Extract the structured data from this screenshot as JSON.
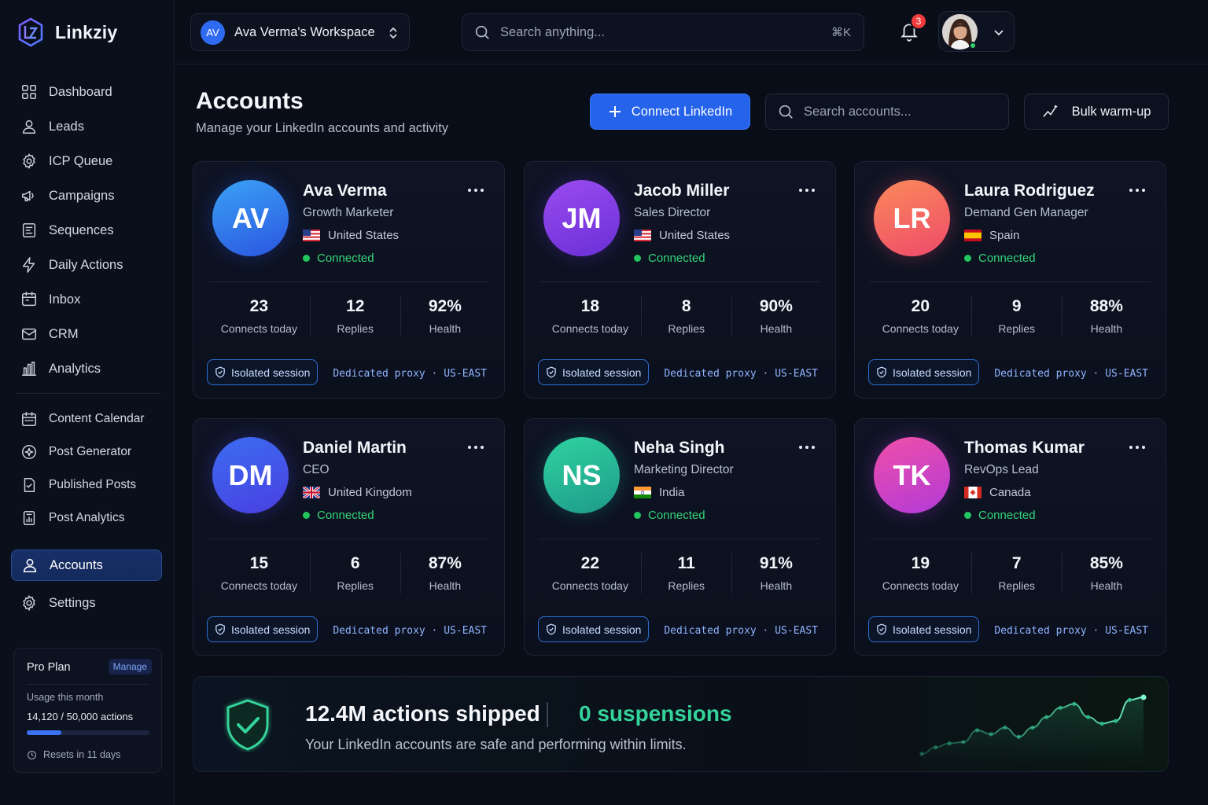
{
  "app": {
    "name": "Linkziy"
  },
  "sidebar": {
    "primary": [
      {
        "label": "Dashboard",
        "icon": "grid-icon"
      },
      {
        "label": "Leads",
        "icon": "user-icon"
      },
      {
        "label": "ICP Queue",
        "icon": "gear-badge-icon"
      },
      {
        "label": "Campaigns",
        "icon": "megaphone-icon"
      },
      {
        "label": "Sequences",
        "icon": "sequence-icon"
      },
      {
        "label": "Daily Actions",
        "icon": "bolt-icon"
      },
      {
        "label": "Inbox",
        "icon": "inbox-icon"
      },
      {
        "label": "CRM",
        "icon": "mail-icon"
      },
      {
        "label": "Analytics",
        "icon": "bar-chart-icon"
      }
    ],
    "content": [
      {
        "label": "Content Calendar",
        "icon": "calendar-icon"
      },
      {
        "label": "Post Generator",
        "icon": "sparkle-icon"
      },
      {
        "label": "Published Posts",
        "icon": "doc-check-icon"
      },
      {
        "label": "Post Analytics",
        "icon": "doc-chart-icon"
      }
    ],
    "accounts": {
      "label": "Accounts",
      "icon": "user-icon"
    },
    "settings": {
      "label": "Settings",
      "icon": "gear-icon"
    },
    "plan": {
      "title": "Pro Plan",
      "manage": "Manage",
      "usage_label": "Usage this month",
      "usage_value": "14,120 / 50,000 actions",
      "usage_fraction": 0.2824,
      "reset": "Resets in 11 days"
    }
  },
  "topbar": {
    "workspace_initials": "AV",
    "workspace": "Ava Verma's Workspace",
    "search_placeholder": "Search anything...",
    "shortcut": "⌘K",
    "notifications": "3"
  },
  "header": {
    "title": "Accounts",
    "subtitle": "Manage your LinkedIn accounts and activity",
    "connect_button": "Connect LinkedIn",
    "search_placeholder": "Search accounts...",
    "bulk_button": "Bulk warm-up"
  },
  "labels": {
    "connects": "Connects today",
    "replies": "Replies",
    "health": "Health",
    "session": "Isolated session",
    "proxy": "Dedicated proxy · US-EAST"
  },
  "accounts": [
    {
      "initials": "AV",
      "name": "Ava Verma",
      "role": "Growth Marketer",
      "country": "United States",
      "flag": "us",
      "status": "Connected",
      "connects": "23",
      "replies": "12",
      "health": "92%",
      "gradient": [
        "#3aa2f5",
        "#2b55e0"
      ]
    },
    {
      "initials": "JM",
      "name": "Jacob Miller",
      "role": "Sales Director",
      "country": "United States",
      "flag": "us",
      "status": "Connected",
      "connects": "18",
      "replies": "8",
      "health": "90%",
      "gradient": [
        "#9a4cf0",
        "#6a2fd6"
      ]
    },
    {
      "initials": "LR",
      "name": "Laura Rodriguez",
      "role": "Demand Gen Manager",
      "country": "Spain",
      "flag": "es",
      "status": "Connected",
      "connects": "20",
      "replies": "9",
      "health": "88%",
      "gradient": [
        "#fb8a5a",
        "#ee4a6a"
      ]
    },
    {
      "initials": "DM",
      "name": "Daniel Martin",
      "role": "CEO",
      "country": "United Kingdom",
      "flag": "uk",
      "status": "Connected",
      "connects": "15",
      "replies": "6",
      "health": "87%",
      "gradient": [
        "#3b6df2",
        "#4a3fe0"
      ]
    },
    {
      "initials": "NS",
      "name": "Neha Singh",
      "role": "Marketing Director",
      "country": "India",
      "flag": "in",
      "status": "Connected",
      "connects": "22",
      "replies": "11",
      "health": "91%",
      "gradient": [
        "#2fd3a0",
        "#1e9a8a"
      ]
    },
    {
      "initials": "TK",
      "name": "Thomas Kumar",
      "role": "RevOps Lead",
      "country": "Canada",
      "flag": "ca",
      "status": "Connected",
      "connects": "19",
      "replies": "7",
      "health": "85%",
      "gradient": [
        "#f04fa8",
        "#b23ad8"
      ]
    }
  ],
  "banner": {
    "actions": "12.4M actions shipped",
    "suspensions": "0 suspensions",
    "subtitle": "Your LinkedIn accounts are safe and performing within limits.",
    "trend": [
      2,
      7,
      10,
      11,
      20,
      17,
      22,
      15,
      22,
      30,
      37,
      40,
      30,
      25,
      27,
      43,
      45
    ]
  }
}
